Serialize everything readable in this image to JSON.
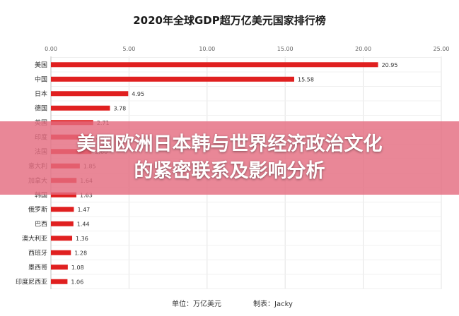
{
  "overlay": {
    "line1": "美国欧洲日本韩与世界经济政治文化",
    "line2": "的紧密联系及影响分析"
  },
  "footer": {
    "unit_label": "单位：万亿美元",
    "maker_label": "制表：Jacky"
  },
  "colors": {
    "bar": "#e02020",
    "grid": "#e3e3e3",
    "overlay": "#e46c80"
  },
  "chart_data": {
    "type": "bar",
    "orientation": "horizontal",
    "title": "2020年全球GDP超万亿美元国家排行榜",
    "xlim": [
      0,
      25
    ],
    "x_ticks": [
      "0.00",
      "5.00",
      "10.00",
      "15.00",
      "20.00",
      "25.00"
    ],
    "tick_values": [
      0,
      5,
      10,
      15,
      20,
      25
    ],
    "grid": true,
    "legend": "none",
    "categories": [
      "美国",
      "中国",
      "日本",
      "德国",
      "英国",
      "印度",
      "法国",
      "意大利",
      "加拿大",
      "韩国",
      "俄罗斯",
      "巴西",
      "澳大利亚",
      "西班牙",
      "墨西哥",
      "印度尼西亚"
    ],
    "values": [
      20.95,
      15.58,
      4.95,
      3.78,
      2.71,
      2.64,
      2.6,
      1.85,
      1.64,
      1.63,
      1.47,
      1.44,
      1.36,
      1.28,
      1.08,
      1.06
    ],
    "value_labels": [
      "20.95",
      "15.58",
      "4.95",
      "3.78",
      "2.71",
      "2.64",
      "2.60",
      "1.85",
      "1.64",
      "1.63",
      "1.47",
      "1.44",
      "1.36",
      "1.28",
      "1.08",
      "1.06"
    ]
  }
}
